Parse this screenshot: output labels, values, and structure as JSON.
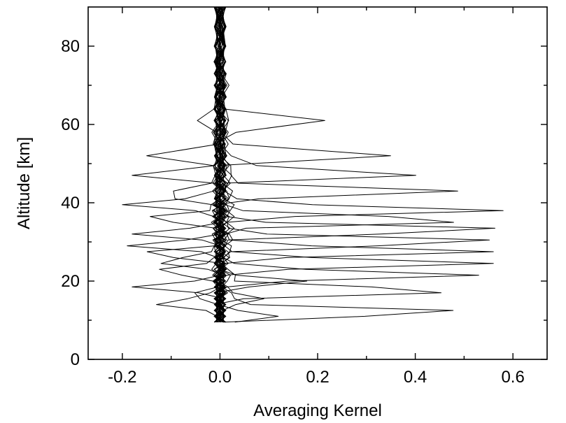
{
  "chart_data": {
    "type": "line",
    "title": "",
    "xlabel": "Averaging Kernel",
    "ylabel": "Altitude [km]",
    "xlim": [
      -0.27,
      0.67
    ],
    "ylim": [
      0,
      90
    ],
    "x_ticks": [
      -0.2,
      0.0,
      0.2,
      0.4,
      0.6
    ],
    "x_tick_labels": [
      "-0.2",
      "0.0",
      "0.2",
      "0.4",
      "0.6"
    ],
    "x_minor_ticks": [
      -0.1,
      0.1,
      0.3,
      0.5
    ],
    "y_ticks": [
      0,
      20,
      40,
      60,
      80
    ],
    "y_tick_labels": [
      "0",
      "20",
      "40",
      "60",
      "80"
    ],
    "y_minor_ticks": [
      10,
      30,
      50,
      70
    ],
    "grid": false,
    "legend": "none",
    "line_color": "#000000",
    "altitude_grid": [
      9.5,
      11,
      12.5,
      14,
      15.5,
      17,
      18.5,
      20,
      21.5,
      23,
      24.5,
      26,
      27.5,
      29,
      30.5,
      32,
      33.5,
      35,
      36.5,
      38,
      39.5,
      41,
      43,
      45,
      47,
      49.5,
      52,
      55,
      58,
      61,
      64,
      67,
      70,
      73,
      76,
      80,
      85,
      90
    ],
    "kernel_peaks": [
      {
        "altitude": 10.8,
        "peak": 0.115
      },
      {
        "altitude": 12,
        "peak": 0.52
      },
      {
        "altitude": 14.3,
        "peak": -0.14
      },
      {
        "altitude": 15.5,
        "peak": 0.09
      },
      {
        "altitude": 16.5,
        "peak": -0.06
      },
      {
        "altitude": 17.5,
        "peak": 0.52
      },
      {
        "altitude": 18.5,
        "peak": -0.18
      },
      {
        "altitude": 19.8,
        "peak": 0.17
      },
      {
        "altitude": 21.5,
        "peak": 0.53
      },
      {
        "altitude": 22.5,
        "peak": -0.14
      },
      {
        "altitude": 24.5,
        "peak": 0.56
      },
      {
        "altitude": 25,
        "peak": -0.14
      },
      {
        "altitude": 27,
        "peak": -0.16
      },
      {
        "altitude": 27.5,
        "peak": 0.56
      },
      {
        "altitude": 29,
        "peak": -0.19
      },
      {
        "altitude": 30,
        "peak": 0.6
      },
      {
        "altitude": 32,
        "peak": -0.18
      },
      {
        "altitude": 33,
        "peak": 0.61
      },
      {
        "altitude": 35.5,
        "peak": 0.56
      },
      {
        "altitude": 36,
        "peak": -0.16
      },
      {
        "altitude": 38,
        "peak": 0.58
      },
      {
        "altitude": 39.5,
        "peak": -0.2
      },
      {
        "altitude": 42,
        "peak": -0.17
      },
      {
        "altitude": 42.8,
        "peak": 0.47
      },
      {
        "altitude": 47,
        "peak": -0.18
      },
      {
        "altitude": 47.5,
        "peak": 0.47
      },
      {
        "altitude": 52,
        "peak": -0.15
      },
      {
        "altitude": 52.5,
        "peak": 0.4
      },
      {
        "altitude": 60,
        "peak": -0.09
      },
      {
        "altitude": 60,
        "peak": 0.34
      }
    ]
  }
}
